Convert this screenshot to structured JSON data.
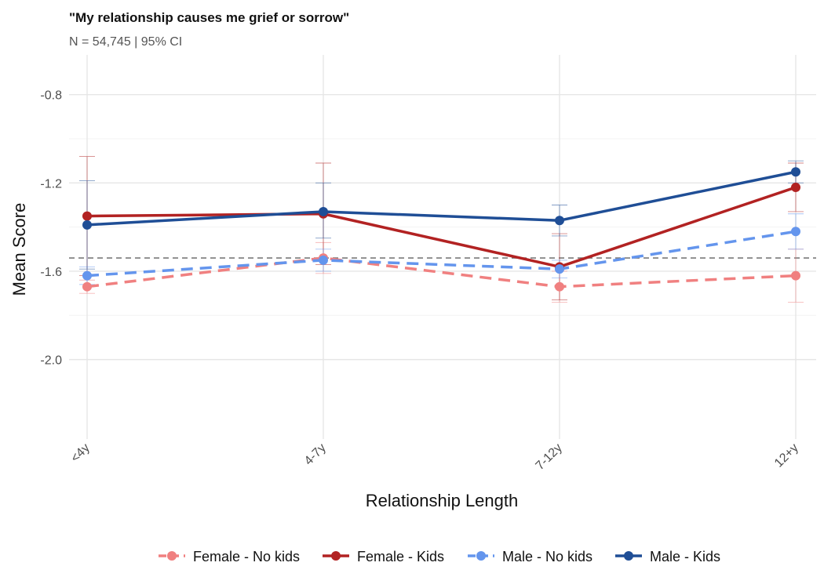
{
  "chart_data": {
    "type": "line",
    "title": "\"My relationship causes me grief or sorrow\"",
    "subtitle": "N = 54,745 | 95% CI",
    "xlabel": "Relationship Length",
    "ylabel": "Mean Score",
    "categories": [
      "<4y",
      "4-7y",
      "7-12y",
      "12+y"
    ],
    "yticks": [
      -0.8,
      -1.2,
      -1.6,
      -2.0
    ],
    "ytick_labels": [
      "-0.8",
      "-1.2",
      "-1.6",
      "-2.0"
    ],
    "ylim": [
      -2.36,
      -0.62
    ],
    "reference_line": -1.54,
    "grid": true,
    "legend_position": "bottom",
    "series": [
      {
        "name": "Female - No kids",
        "color": "#F08080",
        "dashed": true,
        "values": [
          -1.67,
          -1.54,
          -1.67,
          -1.62
        ],
        "ci_low": [
          -1.7,
          -1.61,
          -1.74,
          -1.74
        ],
        "ci_high": [
          -1.64,
          -1.47,
          -1.6,
          -1.5
        ]
      },
      {
        "name": "Female - Kids",
        "color": "#B22222",
        "dashed": false,
        "values": [
          -1.35,
          -1.34,
          -1.58,
          -1.22
        ],
        "ci_low": [
          -1.62,
          -1.57,
          -1.73,
          -1.33
        ],
        "ci_high": [
          -1.08,
          -1.11,
          -1.43,
          -1.11
        ]
      },
      {
        "name": "Male - No kids",
        "color": "#6495ED",
        "dashed": true,
        "values": [
          -1.62,
          -1.55,
          -1.59,
          -1.42
        ],
        "ci_low": [
          -1.66,
          -1.6,
          -1.63,
          -1.5
        ],
        "ci_high": [
          -1.58,
          -1.5,
          -1.55,
          -1.34
        ]
      },
      {
        "name": "Male - Kids",
        "color": "#1F4E96",
        "dashed": false,
        "values": [
          -1.39,
          -1.33,
          -1.37,
          -1.15
        ],
        "ci_low": [
          -1.59,
          -1.45,
          -1.44,
          -1.2
        ],
        "ci_high": [
          -1.19,
          -1.2,
          -1.3,
          -1.1
        ]
      }
    ]
  }
}
